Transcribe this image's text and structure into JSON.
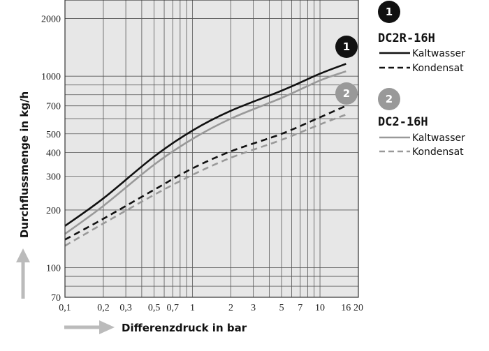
{
  "chart_data": {
    "type": "line",
    "xscale": "log",
    "yscale": "log",
    "xlim": [
      0.1,
      20
    ],
    "ylim": [
      70,
      2500
    ],
    "xlabel": "Differenzdruck in bar",
    "ylabel": "Durchflussmenge in kg/h",
    "x_ticks": [
      0.1,
      0.2,
      0.3,
      0.5,
      0.7,
      1,
      2,
      3,
      5,
      7,
      10,
      16,
      20
    ],
    "x_tick_labels": [
      "0,1",
      "0,2",
      "0,3",
      "0,5",
      "0,7",
      "1",
      "2",
      "3",
      "5",
      "7",
      "10",
      "16",
      "20"
    ],
    "y_ticks": [
      70,
      100,
      200,
      300,
      400,
      500,
      700,
      1000,
      2000
    ],
    "y_tick_labels": [
      "70",
      "100",
      "200",
      "300",
      "400",
      "500",
      "700",
      "1000",
      "2000"
    ],
    "grid": true,
    "series": [
      {
        "model": "DC2R-16H",
        "name": "Kaltwasser",
        "color": "#111111",
        "dash": "solid",
        "x": [
          0.1,
          0.2,
          0.5,
          1,
          2,
          5,
          10,
          16
        ],
        "y": [
          165,
          230,
          380,
          520,
          660,
          840,
          1030,
          1160
        ]
      },
      {
        "model": "DC2R-16H",
        "name": "Kondensat",
        "color": "#111111",
        "dash": "dashed",
        "x": [
          0.1,
          0.2,
          0.5,
          1,
          2,
          5,
          10,
          16
        ],
        "y": [
          140,
          180,
          255,
          330,
          405,
          500,
          610,
          700
        ]
      },
      {
        "model": "DC2-16H",
        "name": "Kaltwasser",
        "color": "#999999",
        "dash": "solid",
        "x": [
          0.1,
          0.2,
          0.5,
          1,
          2,
          5,
          10,
          16
        ],
        "y": [
          150,
          210,
          345,
          470,
          600,
          770,
          950,
          1060
        ]
      },
      {
        "model": "DC2-16H",
        "name": "Kondensat",
        "color": "#999999",
        "dash": "dashed",
        "x": [
          0.1,
          0.2,
          0.5,
          1,
          2,
          5,
          10,
          16
        ],
        "y": [
          130,
          170,
          240,
          305,
          375,
          465,
          560,
          630
        ]
      }
    ]
  },
  "legend": {
    "groups": [
      {
        "badge": "1",
        "model": "DC2R-16H",
        "color": "#111111",
        "items": [
          {
            "label": "Kaltwasser",
            "dash": "solid"
          },
          {
            "label": "Kondensat",
            "dash": "dashed"
          }
        ]
      },
      {
        "badge": "2",
        "model": "DC2-16H",
        "color": "#999999",
        "items": [
          {
            "label": "Kaltwasser",
            "dash": "solid"
          },
          {
            "label": "Kondensat",
            "dash": "dashed"
          }
        ]
      }
    ]
  },
  "curve_badges": [
    "1",
    "2"
  ]
}
